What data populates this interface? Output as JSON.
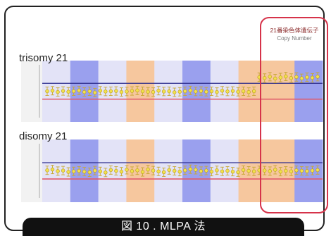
{
  "caption": "図 10 . MLPA 法",
  "highlight": {
    "title": "21番染色体遺伝子",
    "subtitle": "Copy Number",
    "color": "#d6334a"
  },
  "colors": {
    "band_blue": "#9aa0ee",
    "band_orange": "#f6c79e",
    "band_light": "#e3e3f7",
    "upper_line": "#2a2a8a",
    "lower_line": "#e05a6a",
    "point": "#f2e14a",
    "error_bar": "#c8a832"
  },
  "chart_data": [
    {
      "type": "scatter",
      "title": "trisomy 21",
      "ylim": [
        0,
        2
      ],
      "threshold_upper": 1.3,
      "threshold_lower": 0.7,
      "bands": [
        "light",
        "blue",
        "light",
        "orange",
        "light",
        "blue",
        "light",
        "orange",
        "orange",
        "blue"
      ],
      "values": [
        1.0,
        1.02,
        0.97,
        1.01,
        0.98,
        1.0,
        1.03,
        0.97,
        1.0,
        0.95,
        1.02,
        0.99,
        1.0,
        1.01,
        0.97,
        0.99,
        1.01,
        1.03,
        1.0,
        0.98,
        0.97,
        1.02,
        0.99,
        1.0,
        0.96,
        0.98,
        1.0,
        1.03,
        0.99,
        1.01,
        0.98,
        1.0,
        0.97,
        1.02,
        0.99,
        1.01,
        0.98,
        1.0,
        0.97,
        1.0,
        1.53,
        1.5,
        1.55,
        1.48,
        1.52,
        1.56,
        1.5,
        1.54,
        1.49,
        1.53,
        1.51,
        1.55
      ]
    },
    {
      "type": "scatter",
      "title": "disomy 21",
      "ylim": [
        0,
        2
      ],
      "threshold_upper": 1.3,
      "threshold_lower": 0.7,
      "bands": [
        "light",
        "blue",
        "light",
        "orange",
        "light",
        "blue",
        "light",
        "orange",
        "orange",
        "blue"
      ],
      "values": [
        1.02,
        1.05,
        0.99,
        1.01,
        0.96,
        0.98,
        1.0,
        0.97,
        0.95,
        1.01,
        0.98,
        0.94,
        1.03,
        1.0,
        0.97,
        1.04,
        0.99,
        1.02,
        0.96,
        1.05,
        1.01,
        0.98,
        0.95,
        1.03,
        1.0,
        0.97,
        1.02,
        1.06,
        1.04,
        0.99,
        1.01,
        0.97,
        1.02,
        0.98,
        1.0,
        0.97,
        0.95,
        1.03,
        1.0,
        0.98,
        1.02,
        1.01,
        0.99,
        1.04,
        0.97,
        1.0,
        0.98,
        1.02,
        1.0,
        0.99,
        1.01,
        1.03
      ]
    }
  ]
}
